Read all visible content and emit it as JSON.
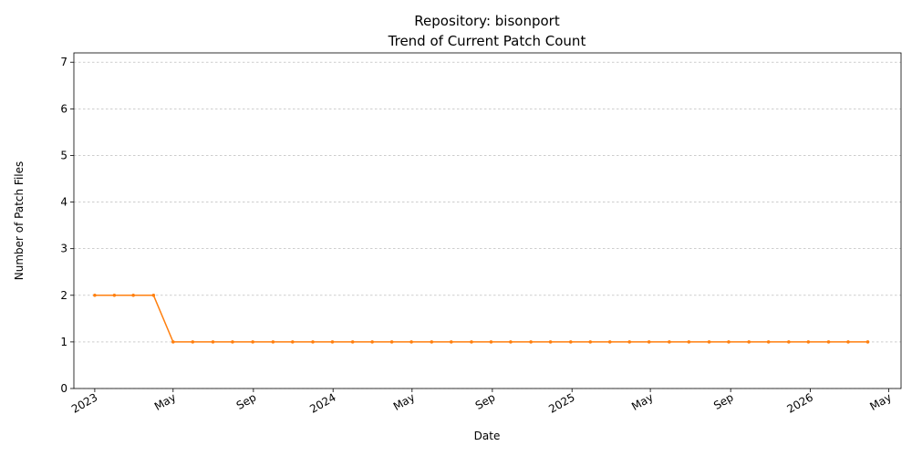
{
  "chart_data": {
    "type": "line",
    "title_line1": "Repository: bisonport",
    "title_line2": "Trend of Current Patch Count",
    "xlabel": "Date",
    "ylabel": "Number of Patch Files",
    "ylim": [
      0,
      7.2
    ],
    "yticks": [
      0,
      1,
      2,
      3,
      4,
      5,
      6,
      7
    ],
    "xlim": [
      "2022-11-30",
      "2026-05-20"
    ],
    "xticks": [
      {
        "date": "2023-01-01",
        "label": "2023"
      },
      {
        "date": "2023-05-01",
        "label": "May"
      },
      {
        "date": "2023-09-01",
        "label": "Sep"
      },
      {
        "date": "2024-01-01",
        "label": "2024"
      },
      {
        "date": "2024-05-01",
        "label": "May"
      },
      {
        "date": "2024-09-01",
        "label": "Sep"
      },
      {
        "date": "2025-01-01",
        "label": "2025"
      },
      {
        "date": "2025-05-01",
        "label": "May"
      },
      {
        "date": "2025-09-01",
        "label": "Sep"
      },
      {
        "date": "2026-01-01",
        "label": "2026"
      },
      {
        "date": "2026-05-01",
        "label": "May"
      }
    ],
    "grid": "y",
    "series": [
      {
        "color": "#ff7f0e",
        "x": [
          "2023-01-01",
          "2023-01-31",
          "2023-03-01",
          "2023-04-01",
          "2023-05-01",
          "2023-05-31",
          "2023-07-01",
          "2023-07-31",
          "2023-08-31",
          "2023-10-01",
          "2023-10-31",
          "2023-12-01",
          "2023-12-31",
          "2024-01-31",
          "2024-03-01",
          "2024-03-31",
          "2024-04-30",
          "2024-05-31",
          "2024-06-30",
          "2024-07-31",
          "2024-08-30",
          "2024-09-29",
          "2024-10-30",
          "2024-11-29",
          "2024-12-30",
          "2025-01-29",
          "2025-02-28",
          "2025-03-30",
          "2025-04-29",
          "2025-05-30",
          "2025-06-29",
          "2025-07-30",
          "2025-08-29",
          "2025-09-29",
          "2025-10-29",
          "2025-11-29",
          "2025-12-29",
          "2026-01-29",
          "2026-02-28",
          "2026-03-30"
        ],
        "y": [
          2,
          2,
          2,
          2,
          1,
          1,
          1,
          1,
          1,
          1,
          1,
          1,
          1,
          1,
          1,
          1,
          1,
          1,
          1,
          1,
          1,
          1,
          1,
          1,
          1,
          1,
          1,
          1,
          1,
          1,
          1,
          1,
          1,
          1,
          1,
          1,
          1,
          1,
          1,
          1
        ]
      }
    ]
  }
}
